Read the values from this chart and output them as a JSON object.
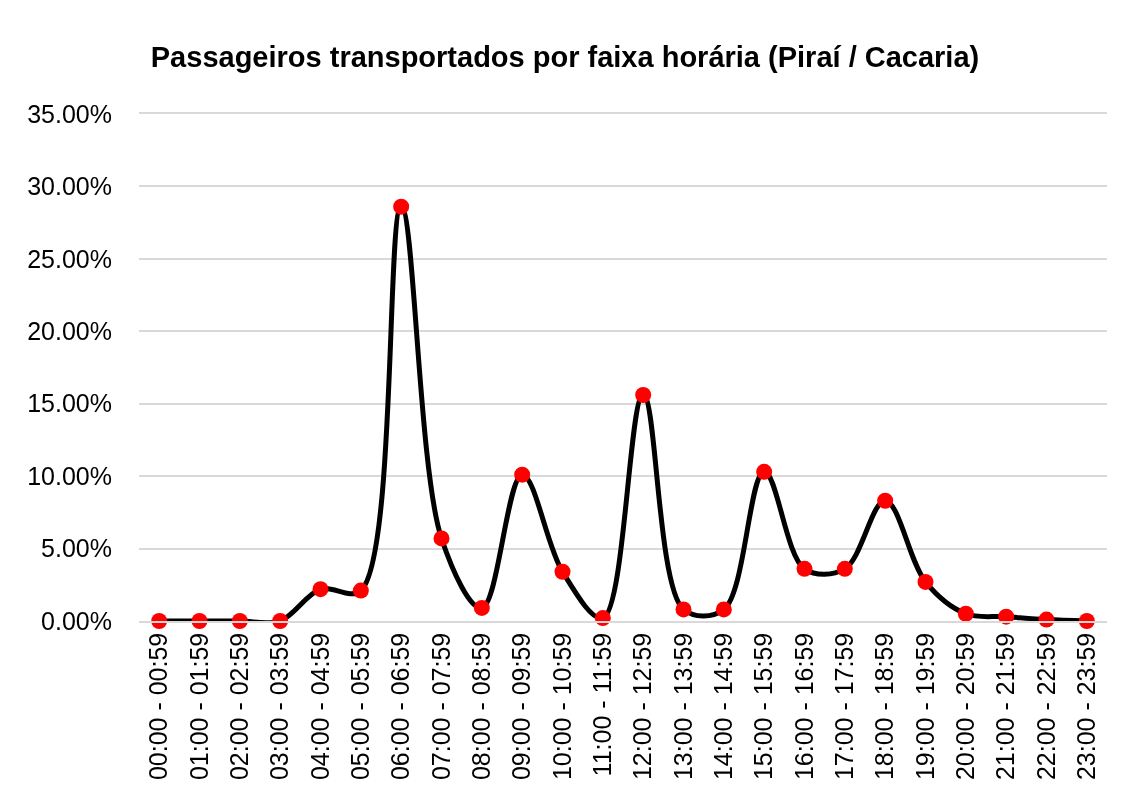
{
  "chart_data": {
    "type": "line",
    "title": "Passageiros transportados por faixa horária (Piraí / Cacaria)",
    "categories": [
      "00:00 - 00:59",
      "01:00 - 01:59",
      "02:00 - 02:59",
      "03:00 - 03:59",
      "04:00 - 04:59",
      "05:00 - 05:59",
      "06:00 - 06:59",
      "07:00 - 07:59",
      "08:00 - 08:59",
      "09:00 - 09:59",
      "10:00 - 10:59",
      "11:00 - 11:59",
      "12:00 - 12:59",
      "13:00 - 13:59",
      "14:00 - 14:59",
      "15:00 - 15:59",
      "16:00 - 16:59",
      "17:00 - 17:59",
      "18:00 - 18:59",
      "19:00 - 19:59",
      "20:00 - 20:59",
      "21:00 - 21:59",
      "22:00 - 22:59",
      "23:00 - 23:59"
    ],
    "series": [
      {
        "color": "#000000",
        "colors": [
          "#ff0000",
          "#ff0000",
          "#ff0000",
          "#ff0000",
          "#ff0000",
          "#ff0000",
          "#ff0000",
          "#ff0000",
          "#ff0000",
          "#ff0000",
          "#ff0000",
          "#ff0000",
          "#ff0000",
          "#ff0000",
          "#ff0000",
          "#ff0000",
          "#ff0000",
          "#ff0000",
          "#ff0000",
          "#ff0000",
          "#ff0000",
          "#ff0000",
          "#ff0000",
          "#ff0000"
        ],
        "values": [
          0,
          0,
          0,
          0,
          2.2,
          2.1,
          28.6,
          5.7,
          0.9,
          10.1,
          3.4,
          0.2,
          15.6,
          0.8,
          0.8,
          10.3,
          3.6,
          3.6,
          8.3,
          2.7,
          0.5,
          0.3,
          0.1,
          0
        ]
      }
    ],
    "ylim": [
      0,
      35
    ],
    "yticks": [
      {
        "value": 0,
        "label": "0.00%"
      },
      {
        "value": 5,
        "label": "5.00%"
      },
      {
        "value": 10,
        "label": "10.00%"
      },
      {
        "value": 15,
        "label": "15.00%"
      },
      {
        "value": 20,
        "label": "20.00%"
      },
      {
        "value": 25,
        "label": "25.00%"
      },
      {
        "value": 30,
        "label": "30.00%"
      },
      {
        "value": 35,
        "label": "35.00%"
      }
    ],
    "grid": "y",
    "marker": "circle",
    "line_style": "solid"
  }
}
